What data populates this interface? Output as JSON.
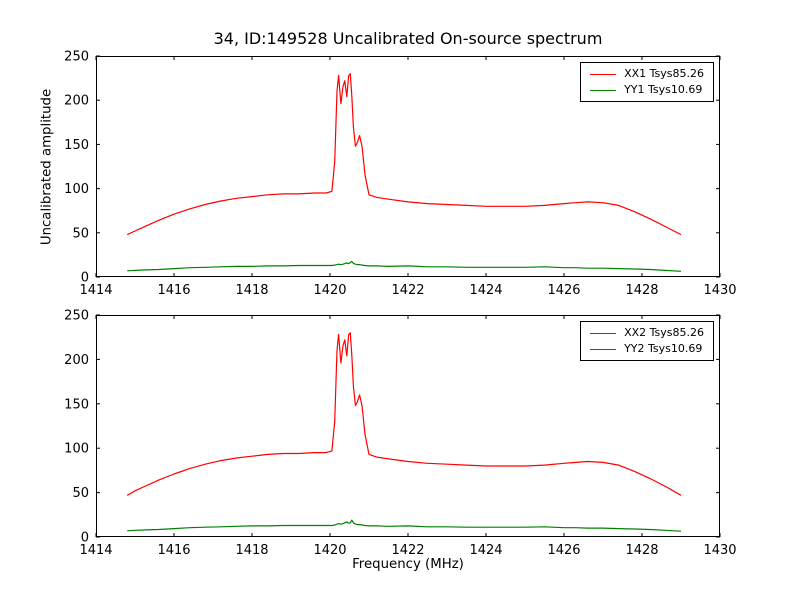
{
  "figure": {
    "background": "#ffffff"
  },
  "chart_data": [
    {
      "type": "line",
      "title": "34, ID:149528 Uncalibrated On-source spectrum",
      "xlabel": "",
      "ylabel": "Uncalibrated amplitude",
      "xlim": [
        1414,
        1430
      ],
      "ylim": [
        0,
        250
      ],
      "xticks": [
        1414,
        1416,
        1418,
        1420,
        1422,
        1424,
        1426,
        1428,
        1430
      ],
      "yticks": [
        0,
        50,
        100,
        150,
        200,
        250
      ],
      "grid": false,
      "legend_position": "upper right",
      "x": [
        1414.8,
        1415.0,
        1415.3,
        1415.6,
        1416.0,
        1416.4,
        1416.8,
        1417.2,
        1417.6,
        1418.0,
        1418.4,
        1418.8,
        1419.2,
        1419.6,
        1419.9,
        1420.05,
        1420.12,
        1420.18,
        1420.22,
        1420.28,
        1420.33,
        1420.38,
        1420.43,
        1420.48,
        1420.52,
        1420.56,
        1420.6,
        1420.65,
        1420.7,
        1420.76,
        1420.82,
        1420.9,
        1421.0,
        1421.2,
        1421.5,
        1422.0,
        1422.5,
        1423.0,
        1423.5,
        1424.0,
        1424.5,
        1425.0,
        1425.5,
        1426.0,
        1426.3,
        1426.6,
        1427.0,
        1427.4,
        1427.8,
        1428.2,
        1428.6,
        1429.0
      ],
      "series": [
        {
          "name": "XX1 Tsys85.26",
          "color": "#ff0000",
          "values": [
            48,
            52,
            58,
            64,
            71,
            77,
            82,
            86,
            89,
            91,
            93,
            94,
            94,
            95,
            95,
            97,
            130,
            210,
            228,
            196,
            215,
            222,
            204,
            228,
            230,
            205,
            170,
            148,
            152,
            160,
            148,
            115,
            93,
            90,
            88,
            85,
            83,
            82,
            81,
            80,
            80,
            80,
            81,
            83,
            84,
            85,
            84,
            81,
            74,
            66,
            57,
            48
          ]
        },
        {
          "name": "YY1 Tsys10.69",
          "color": "#008000",
          "values": [
            7,
            7.5,
            8,
            8.5,
            9.5,
            10.5,
            11,
            11.5,
            12,
            12,
            12.5,
            12.5,
            13,
            13,
            13,
            13,
            13.5,
            14,
            14.5,
            14,
            14.5,
            15,
            16,
            15,
            16.5,
            17.5,
            15.5,
            14.5,
            14,
            14,
            13.5,
            13,
            12.5,
            12.5,
            12,
            12.5,
            11.5,
            11.5,
            11,
            11,
            11,
            11,
            11.5,
            10.5,
            10.5,
            10,
            10,
            9.5,
            9,
            8.5,
            7.5,
            6.5
          ]
        }
      ]
    },
    {
      "type": "line",
      "title": "",
      "xlabel": "Frequency (MHz)",
      "ylabel": "",
      "xlim": [
        1414,
        1430
      ],
      "ylim": [
        0,
        250
      ],
      "xticks": [
        1414,
        1416,
        1418,
        1420,
        1422,
        1424,
        1426,
        1428,
        1430
      ],
      "yticks": [
        0,
        50,
        100,
        150,
        200,
        250
      ],
      "grid": false,
      "legend_position": "upper right",
      "x": [
        1414.8,
        1415.0,
        1415.3,
        1415.6,
        1416.0,
        1416.4,
        1416.8,
        1417.2,
        1417.6,
        1418.0,
        1418.4,
        1418.8,
        1419.2,
        1419.6,
        1419.9,
        1420.05,
        1420.12,
        1420.18,
        1420.22,
        1420.28,
        1420.33,
        1420.38,
        1420.43,
        1420.48,
        1420.52,
        1420.56,
        1420.6,
        1420.65,
        1420.7,
        1420.76,
        1420.82,
        1420.9,
        1421.0,
        1421.2,
        1421.5,
        1422.0,
        1422.5,
        1423.0,
        1423.5,
        1424.0,
        1424.5,
        1425.0,
        1425.5,
        1426.0,
        1426.3,
        1426.6,
        1427.0,
        1427.4,
        1427.8,
        1428.2,
        1428.6,
        1429.0
      ],
      "series": [
        {
          "name": "XX2 Tsys85.26",
          "color": "#ff0000",
          "values": [
            47,
            52,
            58,
            64,
            71,
            77,
            82,
            86,
            89,
            91,
            93,
            94,
            94,
            95,
            95,
            97,
            130,
            210,
            228,
            196,
            215,
            222,
            204,
            228,
            230,
            205,
            170,
            148,
            152,
            160,
            148,
            115,
            93,
            90,
            88,
            85,
            83,
            82,
            81,
            80,
            80,
            80,
            81,
            83,
            84,
            85,
            84,
            81,
            74,
            66,
            57,
            47
          ]
        },
        {
          "name": "YY2 Tsys10.69",
          "color": "#008000",
          "values": [
            7,
            7.5,
            8,
            8.5,
            9.5,
            10.5,
            11,
            11.5,
            12,
            12.5,
            12.5,
            13,
            13,
            13,
            13,
            13,
            13.5,
            14.5,
            15,
            14.5,
            15,
            16,
            17,
            15.5,
            16,
            19,
            16,
            14.5,
            14,
            14,
            13.5,
            13,
            12.5,
            12.5,
            12,
            12.5,
            11.5,
            11.5,
            11,
            11,
            11,
            11,
            11.5,
            10.5,
            10.5,
            10,
            10,
            9.5,
            9,
            8.5,
            7.5,
            6.5
          ]
        }
      ]
    }
  ]
}
